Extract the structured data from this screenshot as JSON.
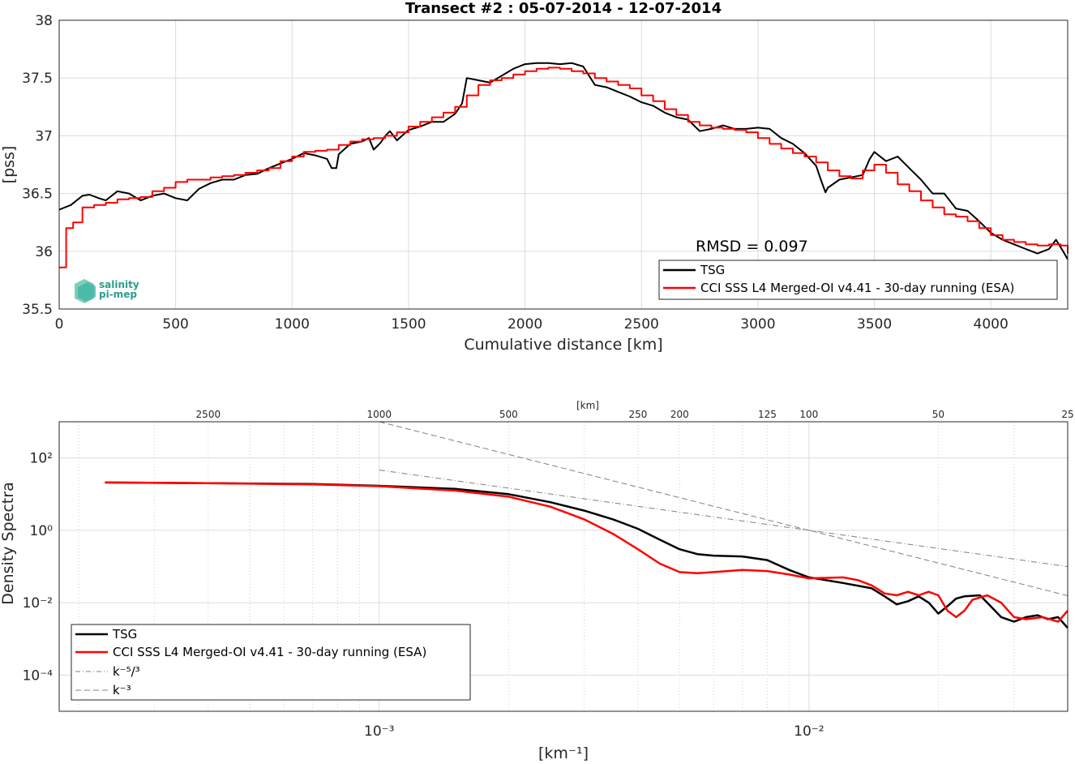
{
  "colors": {
    "tsg": "#000000",
    "cci": "#ff0000",
    "ref": "#808080"
  },
  "chart_data": [
    {
      "type": "line",
      "title": "Transect #2 : 05-07-2014 - 12-07-2014",
      "xlabel": "Cumulative distance [km]",
      "ylabel": "[pss]",
      "xlim": [
        0,
        4330
      ],
      "ylim": [
        35.5,
        38
      ],
      "xticks": [
        "0",
        "500",
        "1000",
        "1500",
        "2000",
        "2500",
        "3000",
        "3500",
        "4000"
      ],
      "yticks": [
        "35.5",
        "36",
        "36.5",
        "37",
        "37.5",
        "38"
      ],
      "grid": true,
      "legend_position": "bottom-right",
      "annotation": "RMSD = 0.097",
      "logo": "salinity pi-mep",
      "series": [
        {
          "name": "TSG",
          "x": [
            0,
            50,
            100,
            130,
            170,
            200,
            250,
            300,
            350,
            400,
            450,
            500,
            550,
            600,
            650,
            700,
            750,
            800,
            850,
            900,
            950,
            1000,
            1050,
            1100,
            1150,
            1170,
            1190,
            1200,
            1250,
            1300,
            1330,
            1350,
            1380,
            1400,
            1420,
            1450,
            1500,
            1550,
            1600,
            1650,
            1700,
            1730,
            1750,
            1800,
            1850,
            1900,
            1950,
            2000,
            2050,
            2100,
            2150,
            2200,
            2250,
            2300,
            2350,
            2400,
            2450,
            2500,
            2550,
            2600,
            2650,
            2700,
            2750,
            2800,
            2850,
            2900,
            2950,
            3000,
            3050,
            3100,
            3150,
            3200,
            3250,
            3270,
            3290,
            3300,
            3350,
            3400,
            3450,
            3480,
            3500,
            3550,
            3600,
            3650,
            3700,
            3750,
            3800,
            3850,
            3900,
            3950,
            4000,
            4050,
            4100,
            4150,
            4200,
            4250,
            4280,
            4310,
            4330
          ],
          "y": [
            36.36,
            36.4,
            36.48,
            36.49,
            36.46,
            36.44,
            36.52,
            36.5,
            36.44,
            36.48,
            36.5,
            36.46,
            36.44,
            36.54,
            36.59,
            36.62,
            36.62,
            36.66,
            36.67,
            36.72,
            36.76,
            36.8,
            36.85,
            36.83,
            36.8,
            36.72,
            36.72,
            36.84,
            36.93,
            36.95,
            36.98,
            36.88,
            36.94,
            37.0,
            37.04,
            36.96,
            37.05,
            37.08,
            37.12,
            37.12,
            37.19,
            37.28,
            37.5,
            37.48,
            37.46,
            37.52,
            37.58,
            37.62,
            37.63,
            37.63,
            37.62,
            37.63,
            37.6,
            37.44,
            37.42,
            37.38,
            37.34,
            37.29,
            37.26,
            37.2,
            37.16,
            37.14,
            37.04,
            37.06,
            37.09,
            37.06,
            37.06,
            37.07,
            37.06,
            36.98,
            36.93,
            36.85,
            36.74,
            36.62,
            36.51,
            36.55,
            36.62,
            36.64,
            36.66,
            36.8,
            36.86,
            36.78,
            36.82,
            36.72,
            36.62,
            36.5,
            36.5,
            36.37,
            36.35,
            36.26,
            36.16,
            36.1,
            36.06,
            36.02,
            35.98,
            36.02,
            36.1,
            36.0,
            35.93
          ]
        },
        {
          "name": "CCI SSS L4 Merged-OI v4.41 - 30-day running (ESA)",
          "x": [
            0,
            30,
            60,
            100,
            150,
            200,
            250,
            300,
            350,
            400,
            450,
            500,
            550,
            600,
            650,
            700,
            750,
            800,
            850,
            900,
            950,
            1000,
            1050,
            1100,
            1150,
            1200,
            1250,
            1300,
            1350,
            1400,
            1450,
            1500,
            1550,
            1600,
            1650,
            1700,
            1750,
            1800,
            1850,
            1900,
            1950,
            2000,
            2050,
            2100,
            2150,
            2200,
            2250,
            2300,
            2350,
            2400,
            2450,
            2500,
            2550,
            2600,
            2650,
            2700,
            2750,
            2800,
            2850,
            2900,
            2950,
            3000,
            3050,
            3100,
            3150,
            3200,
            3250,
            3300,
            3350,
            3400,
            3450,
            3500,
            3550,
            3600,
            3650,
            3700,
            3750,
            3800,
            3850,
            3900,
            3950,
            4000,
            4050,
            4100,
            4150,
            4200,
            4250,
            4300,
            4330
          ],
          "y": [
            35.86,
            36.2,
            36.25,
            36.38,
            36.4,
            36.42,
            36.45,
            36.46,
            36.47,
            36.52,
            36.55,
            36.6,
            36.62,
            36.62,
            36.64,
            36.65,
            36.66,
            36.68,
            36.7,
            36.72,
            36.78,
            36.82,
            36.86,
            36.87,
            36.88,
            36.92,
            36.95,
            36.97,
            36.98,
            37.0,
            37.03,
            37.08,
            37.12,
            37.16,
            37.2,
            37.25,
            37.35,
            37.44,
            37.48,
            37.5,
            37.53,
            37.56,
            37.58,
            37.59,
            37.58,
            37.56,
            37.54,
            37.5,
            37.47,
            37.44,
            37.41,
            37.35,
            37.3,
            37.23,
            37.18,
            37.12,
            37.09,
            37.07,
            37.06,
            37.05,
            37.03,
            36.98,
            36.93,
            36.89,
            36.85,
            36.82,
            36.77,
            36.7,
            36.65,
            36.63,
            36.7,
            36.75,
            36.68,
            36.58,
            36.52,
            36.44,
            36.38,
            36.32,
            36.3,
            36.26,
            36.2,
            36.14,
            36.1,
            36.08,
            36.06,
            36.05,
            36.06,
            36.05,
            35.98
          ]
        }
      ]
    },
    {
      "type": "line",
      "xlabel": "[km⁻¹]",
      "ylabel": "Density Spectra",
      "xscale": "log",
      "yscale": "log",
      "xlim": [
        0.00018,
        0.04
      ],
      "ylim": [
        1e-05,
        1000
      ],
      "xticks": [
        "10⁻³",
        "10⁻²"
      ],
      "yticks": [
        "10⁻⁴",
        "10⁻²",
        "10⁰",
        "10²"
      ],
      "top_axis_label": "[km]",
      "top_ticks": [
        "2500",
        "1000",
        "500",
        "250",
        "200",
        "125",
        "100",
        "50",
        "25"
      ],
      "top_tick_values": [
        2500,
        1000,
        500,
        250,
        200,
        125,
        100,
        50,
        25
      ],
      "grid": true,
      "legend_position": "bottom-left",
      "series": [
        {
          "name": "TSG",
          "x": [
            0.00023,
            0.0004,
            0.0007,
            0.001,
            0.0015,
            0.002,
            0.0025,
            0.003,
            0.0035,
            0.004,
            0.0045,
            0.005,
            0.0055,
            0.006,
            0.007,
            0.008,
            0.009,
            0.01,
            0.012,
            0.014,
            0.015,
            0.016,
            0.017,
            0.018,
            0.019,
            0.02,
            0.021,
            0.022,
            0.023,
            0.025,
            0.026,
            0.028,
            0.03,
            0.032,
            0.034,
            0.036,
            0.038,
            0.04
          ],
          "y": [
            21,
            20,
            19,
            17,
            14,
            10,
            6,
            3.5,
            2,
            1.1,
            0.55,
            0.3,
            0.22,
            0.2,
            0.19,
            0.15,
            0.08,
            0.05,
            0.035,
            0.025,
            0.015,
            0.009,
            0.011,
            0.015,
            0.01,
            0.005,
            0.008,
            0.013,
            0.015,
            0.016,
            0.01,
            0.004,
            0.003,
            0.004,
            0.0045,
            0.0035,
            0.004,
            0.002
          ]
        },
        {
          "name": "CCI SSS L4 Merged-OI v4.41 - 30-day running (ESA)",
          "x": [
            0.00023,
            0.0004,
            0.0007,
            0.001,
            0.0015,
            0.002,
            0.0025,
            0.003,
            0.0035,
            0.004,
            0.0045,
            0.005,
            0.0055,
            0.006,
            0.007,
            0.008,
            0.009,
            0.01,
            0.012,
            0.013,
            0.014,
            0.015,
            0.016,
            0.017,
            0.018,
            0.019,
            0.02,
            0.021,
            0.022,
            0.023,
            0.024,
            0.026,
            0.028,
            0.03,
            0.032,
            0.035,
            0.038,
            0.04
          ],
          "y": [
            21,
            20,
            18.5,
            16.5,
            12.5,
            8.5,
            4.5,
            2,
            0.8,
            0.3,
            0.12,
            0.07,
            0.065,
            0.07,
            0.08,
            0.075,
            0.06,
            0.047,
            0.05,
            0.042,
            0.03,
            0.018,
            0.016,
            0.02,
            0.016,
            0.02,
            0.016,
            0.006,
            0.004,
            0.006,
            0.012,
            0.016,
            0.01,
            0.004,
            0.0035,
            0.004,
            0.003,
            0.006
          ]
        },
        {
          "name": "k⁻⁵/³",
          "style": "dash-dot",
          "x": [
            0.001,
            0.04
          ],
          "y": [
            46.4,
            0.0993
          ]
        },
        {
          "name": "k⁻³",
          "style": "dashed",
          "x": [
            0.001,
            0.04
          ],
          "y": [
            1000,
            0.015625
          ]
        }
      ]
    }
  ]
}
